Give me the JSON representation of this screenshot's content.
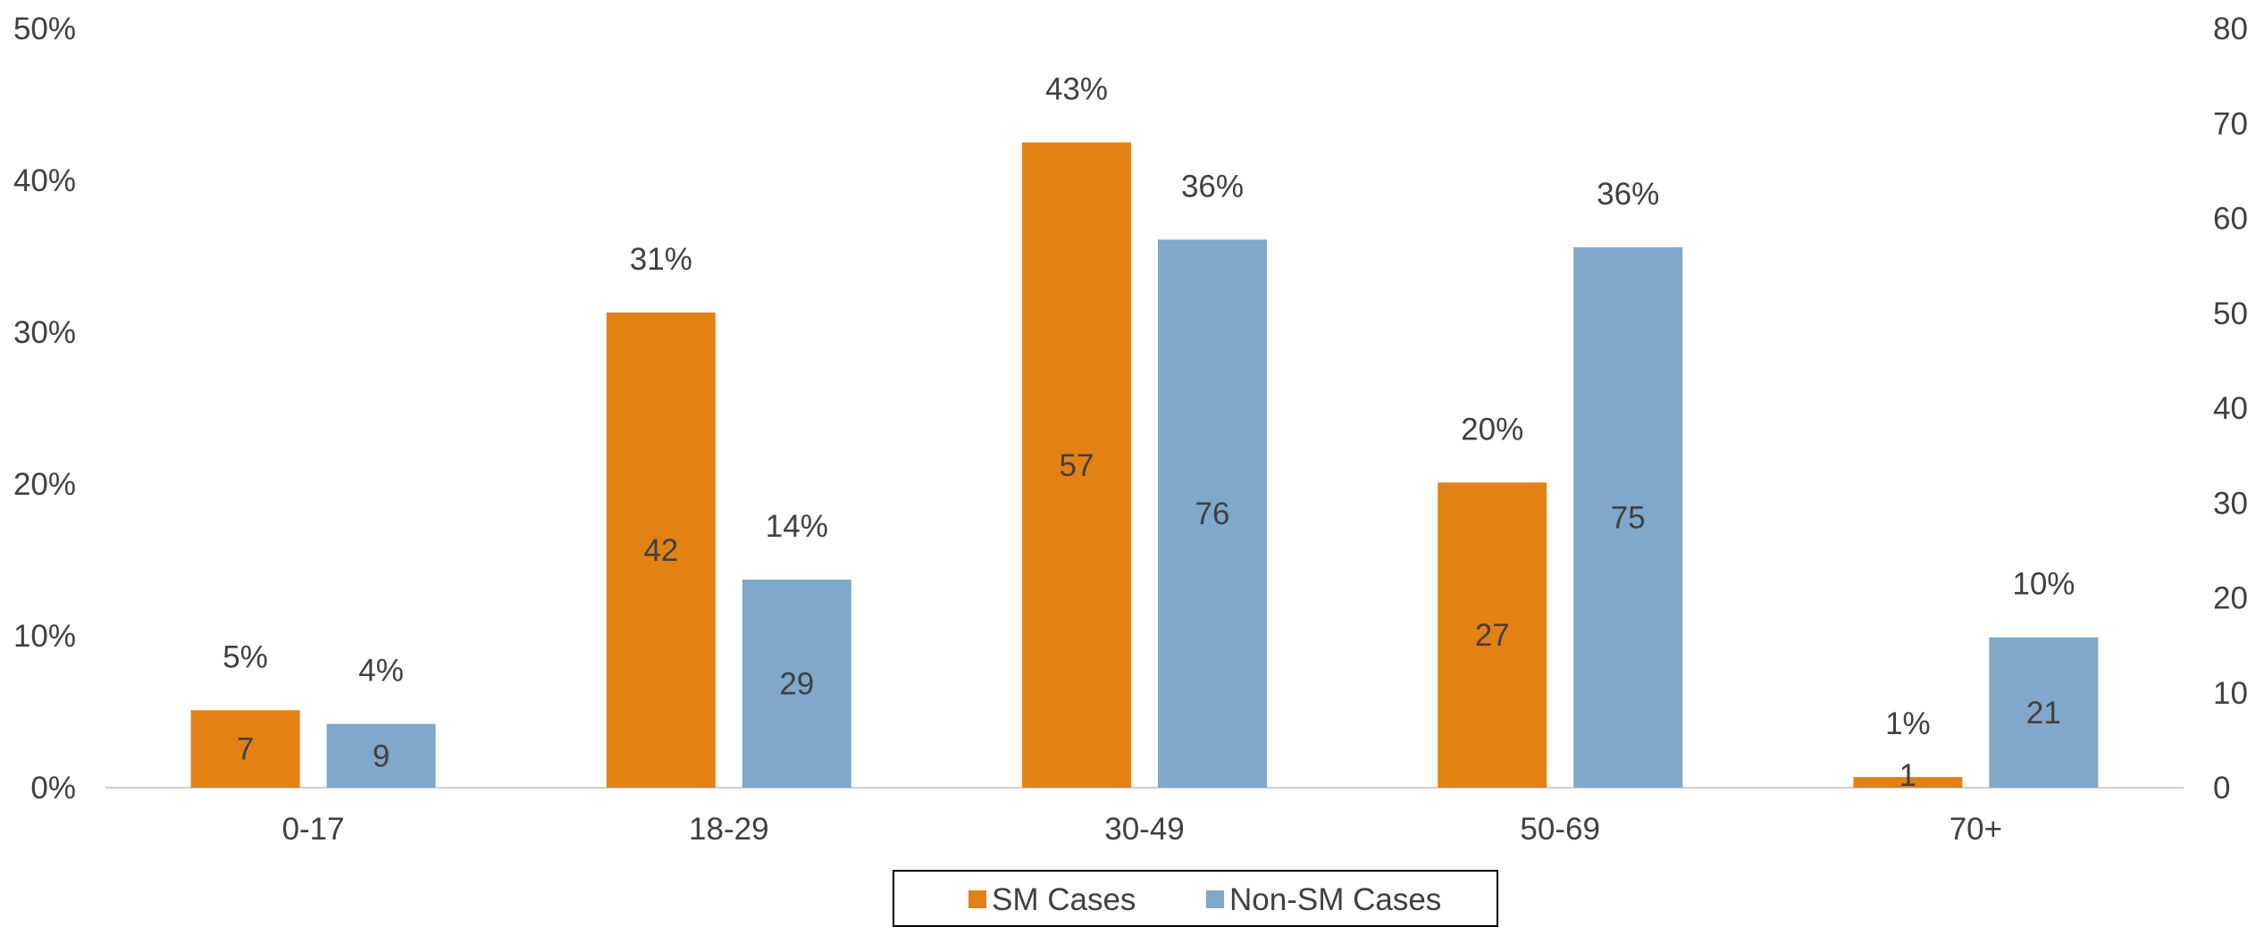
{
  "colors": {
    "sm": "#E38213",
    "non_sm": "#7FA8CB",
    "axis_line": "#d0d0d0",
    "text": "#404040",
    "legend_border": "#000000"
  },
  "chart_data": {
    "type": "bar",
    "categories": [
      "0-17",
      "18-29",
      "30-49",
      "50-69",
      "70+"
    ],
    "series": [
      {
        "name": "SM Cases",
        "percent_values": [
          5.1,
          31.3,
          42.5,
          20.1,
          0.7
        ],
        "percent_labels": [
          "5%",
          "31%",
          "43%",
          "20%",
          "1%"
        ],
        "count_labels": [
          "7",
          "42",
          "57",
          "27",
          "1"
        ]
      },
      {
        "name": "Non-SM Cases",
        "percent_values": [
          4.2,
          13.7,
          36.1,
          35.6,
          9.9
        ],
        "percent_labels": [
          "4%",
          "14%",
          "36%",
          "36%",
          "10%"
        ],
        "count_labels": [
          "9",
          "29",
          "76",
          "75",
          "21"
        ]
      }
    ],
    "y_left": {
      "ticks": [
        "0%",
        "10%",
        "20%",
        "30%",
        "40%",
        "50%"
      ],
      "tick_values": [
        0,
        10,
        20,
        30,
        40,
        50
      ],
      "range": [
        0,
        50
      ]
    },
    "y_right": {
      "ticks": [
        "0",
        "10",
        "20",
        "30",
        "40",
        "50",
        "60",
        "70",
        "80"
      ],
      "tick_values": [
        0,
        10,
        20,
        30,
        40,
        50,
        60,
        70,
        80
      ],
      "range": [
        0,
        80
      ]
    },
    "grid": false,
    "legend_position": "bottom"
  }
}
